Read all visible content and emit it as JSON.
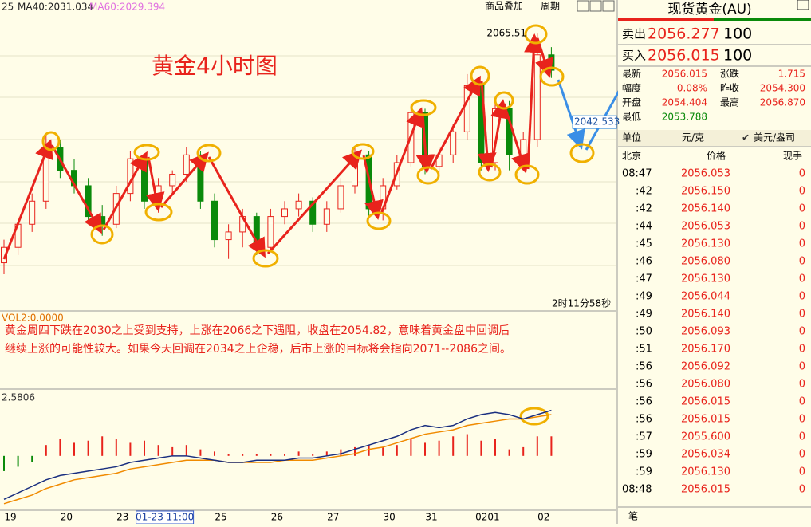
{
  "header": {
    "ma_prefix": "25",
    "ma40": "MA40:2031.034",
    "ma60": "MA60:2029.394",
    "overlay": "商品叠加",
    "period": "周期"
  },
  "chart_data": {
    "type": "candlestick",
    "title": "黄金4小时图",
    "ylim": [
      2002.8,
      2070.1
    ],
    "price_markers": [
      {
        "value": 2065.51,
        "label": "2065.51"
      },
      {
        "value": 2042.533,
        "label": "2042.533"
      }
    ],
    "categories": [
      "19",
      null,
      null,
      null,
      "20",
      null,
      null,
      null,
      "23",
      null,
      null,
      "01-23 11:00",
      null,
      null,
      null,
      "25",
      null,
      null,
      null,
      "26",
      null,
      null,
      null,
      "27",
      null,
      null,
      null,
      "30",
      null,
      null,
      "31",
      null,
      null,
      null,
      "0201",
      null,
      null,
      null,
      "02",
      null
    ],
    "open": [
      2006,
      2010,
      2016,
      2022,
      2036,
      2030,
      2026,
      2018,
      2016,
      2024,
      2033,
      2022,
      2026,
      2029,
      2034,
      2022,
      2012,
      2014,
      2018,
      2010,
      2018,
      2020,
      2022,
      2016,
      2020,
      2026,
      2034,
      2020,
      2026,
      2032,
      2045,
      2031,
      2034,
      2040,
      2052,
      2032,
      2046,
      2034,
      2038,
      2060
    ],
    "high": [
      2012,
      2018,
      2024,
      2039,
      2038,
      2033,
      2028,
      2021,
      2026,
      2035,
      2034,
      2028,
      2030,
      2036,
      2035,
      2024,
      2016,
      2020,
      2019,
      2020,
      2022,
      2024,
      2023,
      2022,
      2028,
      2036,
      2035,
      2028,
      2034,
      2047,
      2046,
      2036,
      2042,
      2055,
      2053,
      2049,
      2048,
      2040,
      2065.51,
      2062
    ],
    "low": [
      2003,
      2008,
      2014,
      2020,
      2028,
      2024,
      2016,
      2013,
      2015,
      2022,
      2020,
      2019,
      2024,
      2027,
      2020,
      2010,
      2007,
      2010,
      2008,
      2009,
      2016,
      2018,
      2014,
      2014,
      2019,
      2024,
      2018,
      2017,
      2025,
      2031,
      2029,
      2029,
      2032,
      2038,
      2030,
      2030,
      2030,
      2030,
      2036,
      2054
    ],
    "close": [
      2010,
      2016,
      2022,
      2036,
      2030,
      2026,
      2018,
      2016,
      2024,
      2033,
      2022,
      2026,
      2029,
      2034,
      2022,
      2012,
      2014,
      2018,
      2010,
      2018,
      2020,
      2022,
      2016,
      2020,
      2026,
      2034,
      2020,
      2026,
      2032,
      2045,
      2031,
      2034,
      2040,
      2052,
      2032,
      2046,
      2034,
      2038,
      2060,
      2056
    ],
    "up_color": "#e8231c",
    "down_color": "#0a8a0a",
    "countdown": "2时11分58秒"
  },
  "commentary": {
    "vol_label": "VOL2:0.0000",
    "lines": [
      "黄金周四下跌在2030之上受到支持，上涨在2066之下遇阻，收盘在2054.82，意味着黄金盘中回调后",
      "继续上涨的可能性较大。如果今天回调在2034之上企稳，后市上涨的目标将会指向2071--2086之间。"
    ]
  },
  "indicator": {
    "type": "bar",
    "label": "2.5806",
    "ylim": [
      -2.5,
      3.0
    ],
    "bars": [
      -0.7,
      -0.5,
      -0.3,
      0.5,
      0.8,
      0.6,
      0.7,
      0.9,
      0.8,
      0.6,
      0.7,
      0.5,
      0.4,
      0.5,
      0.3,
      0.2,
      0.1,
      0.1,
      0.1,
      0.1,
      0.1,
      0.2,
      0.1,
      0.2,
      0.3,
      0.4,
      0.5,
      0.4,
      0.5,
      0.8,
      0.6,
      0.7,
      0.9,
      1.0,
      0.7,
      0.8,
      0.3,
      0.4,
      0.9,
      0.9
    ],
    "line": [
      -2.0,
      -1.7,
      -1.4,
      -1.1,
      -0.9,
      -0.8,
      -0.7,
      -0.6,
      -0.5,
      -0.3,
      -0.2,
      -0.1,
      0.0,
      0.0,
      -0.1,
      -0.2,
      -0.3,
      -0.3,
      -0.2,
      -0.2,
      -0.2,
      -0.1,
      -0.1,
      0.0,
      0.1,
      0.3,
      0.5,
      0.7,
      0.9,
      1.2,
      1.4,
      1.3,
      1.4,
      1.7,
      1.9,
      2.0,
      1.9,
      1.7,
      1.9,
      2.1
    ],
    "signal": [
      -2.2,
      -2.0,
      -1.8,
      -1.5,
      -1.3,
      -1.1,
      -1.0,
      -0.9,
      -0.8,
      -0.6,
      -0.5,
      -0.4,
      -0.3,
      -0.2,
      -0.2,
      -0.2,
      -0.3,
      -0.3,
      -0.3,
      -0.3,
      -0.2,
      -0.2,
      -0.2,
      -0.1,
      0.0,
      0.1,
      0.3,
      0.4,
      0.6,
      0.8,
      1.0,
      1.1,
      1.2,
      1.4,
      1.5,
      1.6,
      1.7,
      1.7,
      1.8,
      1.9
    ]
  },
  "quote": {
    "title": "现货黄金(AU)",
    "sell_label": "卖出",
    "sell": "2056.277",
    "sell_vol": "100",
    "buy_label": "买入",
    "buy": "2056.015",
    "buy_vol": "100",
    "rows": [
      [
        "最新",
        "2056.015",
        "涨跌",
        "1.715"
      ],
      [
        "幅度",
        "0.08%",
        "昨收",
        "2054.300"
      ],
      [
        "开盘",
        "2054.404",
        "最高",
        "2056.870"
      ],
      [
        "最低",
        "2053.788"
      ]
    ],
    "unit_label": "单位",
    "unit": "元/克",
    "unit_alt": "美元/盎司"
  },
  "trades": {
    "header": [
      "北京",
      "价格",
      "现手"
    ],
    "rows": [
      [
        "08:47",
        "2056.053",
        "0"
      ],
      [
        ":42",
        "2056.150",
        "0"
      ],
      [
        ":42",
        "2056.140",
        "0"
      ],
      [
        ":44",
        "2056.053",
        "0"
      ],
      [
        ":45",
        "2056.130",
        "0"
      ],
      [
        ":46",
        "2056.080",
        "0"
      ],
      [
        ":47",
        "2056.130",
        "0"
      ],
      [
        ":49",
        "2056.044",
        "0"
      ],
      [
        ":49",
        "2056.140",
        "0"
      ],
      [
        ":50",
        "2056.093",
        "0"
      ],
      [
        ":51",
        "2056.170",
        "0"
      ],
      [
        ":56",
        "2056.092",
        "0"
      ],
      [
        ":56",
        "2056.080",
        "0"
      ],
      [
        ":56",
        "2056.015",
        "0"
      ],
      [
        ":56",
        "2056.015",
        "0"
      ],
      [
        ":57",
        "2055.600",
        "0"
      ],
      [
        ":59",
        "2056.034",
        "0"
      ],
      [
        ":59",
        "2056.130",
        "0"
      ],
      [
        "08:48",
        "2056.015",
        "0"
      ]
    ],
    "footer": "笔"
  }
}
